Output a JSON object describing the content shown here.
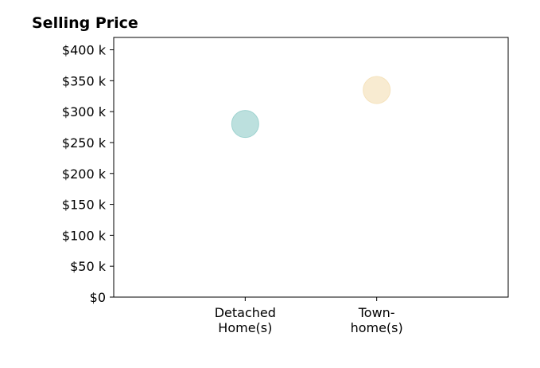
{
  "chart_data": {
    "type": "scatter",
    "title": "Selling Price",
    "xlabel": "",
    "ylabel": "",
    "categories": [
      [
        "Detached",
        "Home(s)"
      ],
      [
        "Town-",
        "home(s)"
      ]
    ],
    "points": [
      {
        "category_index": 0,
        "value": 280000,
        "color": "#9fd3d0"
      },
      {
        "category_index": 1,
        "value": 335000,
        "color": "#f5e3bd"
      }
    ],
    "y_ticks": [
      {
        "value": 0,
        "label": "$0"
      },
      {
        "value": 50000,
        "label": "$50 k"
      },
      {
        "value": 100000,
        "label": "$100 k"
      },
      {
        "value": 150000,
        "label": "$150 k"
      },
      {
        "value": 200000,
        "label": "$200 k"
      },
      {
        "value": 250000,
        "label": "$250 k"
      },
      {
        "value": 300000,
        "label": "$300 k"
      },
      {
        "value": 350000,
        "label": "$350 k"
      },
      {
        "value": 400000,
        "label": "$400 k"
      }
    ],
    "ylim": [
      0,
      420000
    ],
    "x_range": [
      -1,
      2
    ],
    "grid": false,
    "legend": "none",
    "marker_opacity": 0.7
  }
}
